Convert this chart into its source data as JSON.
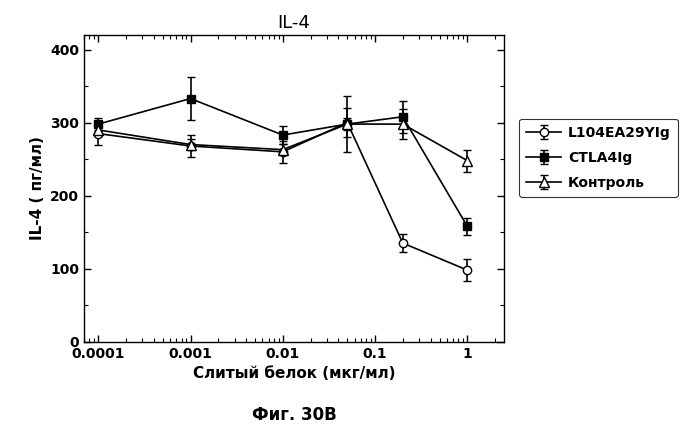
{
  "title": "IL-4",
  "xlabel": "Слитый белок (мкг/мл)",
  "ylabel": "IL-4 ( пг/мл)",
  "caption": "Фиг. 30В",
  "x_values": [
    0.0001,
    0.001,
    0.01,
    0.05,
    0.2,
    1.0
  ],
  "L104EA29YIg_y": [
    285,
    268,
    260,
    300,
    135,
    98
  ],
  "L104EA29YIg_yerr": [
    15,
    15,
    15,
    20,
    12,
    15
  ],
  "CTLA4Ig_y": [
    298,
    333,
    283,
    298,
    308,
    158
  ],
  "CTLA4Ig_yerr": [
    8,
    30,
    12,
    38,
    22,
    12
  ],
  "Kontrol_y": [
    290,
    270,
    263,
    298,
    298,
    248
  ],
  "Kontrol_yerr": [
    8,
    8,
    8,
    8,
    20,
    15
  ],
  "ylim": [
    0,
    420
  ],
  "xlim": [
    7e-05,
    2.5
  ],
  "xticks": [
    0.0001,
    0.001,
    0.01,
    0.1,
    1.0
  ],
  "xtick_labels": [
    "0.0001",
    "0.001",
    "0.01",
    "0.1",
    "1"
  ],
  "yticks": [
    0,
    100,
    200,
    300,
    400
  ],
  "legend_labels": [
    "L104EA29YIg",
    "CTLA4Ig",
    "Контроль"
  ]
}
